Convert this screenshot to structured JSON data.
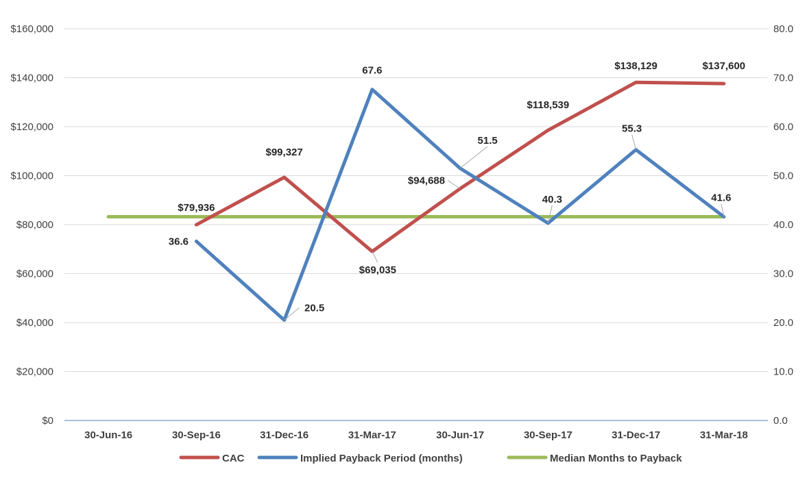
{
  "chart_data": {
    "type": "line",
    "categories": [
      "30-Jun-16",
      "30-Sep-16",
      "31-Dec-16",
      "31-Mar-17",
      "30-Jun-17",
      "30-Sep-17",
      "31-Dec-17",
      "31-Mar-18"
    ],
    "y_left": {
      "ticks": [
        "$0",
        "$20,000",
        "$40,000",
        "$60,000",
        "$80,000",
        "$100,000",
        "$120,000",
        "$140,000",
        "$160,000"
      ],
      "range": [
        0,
        160000
      ]
    },
    "y_right": {
      "ticks": [
        "0.0",
        "10.0",
        "20.0",
        "30.0",
        "40.0",
        "50.0",
        "60.0",
        "70.0",
        "80.0"
      ],
      "range": [
        0,
        80
      ]
    },
    "grid": true,
    "legend_position": "bottom",
    "series": [
      {
        "name": "CAC",
        "axis": "left",
        "color": "#c0504d",
        "values": [
          null,
          79936,
          99327,
          69035,
          94688,
          118539,
          138129,
          137600
        ],
        "labels": [
          "",
          "$79,936",
          "$99,327",
          "$69,035",
          "$94,688",
          "$118,539",
          "$138,129",
          "$137,600"
        ]
      },
      {
        "name": "Implied Payback Period (months)",
        "axis": "right",
        "color": "#4f81bd",
        "values": [
          null,
          36.6,
          20.5,
          67.6,
          51.5,
          40.3,
          55.3,
          41.6
        ],
        "labels": [
          "",
          "36.6",
          "20.5",
          "67.6",
          "51.5",
          "40.3",
          "55.3",
          "41.6"
        ]
      },
      {
        "name": "Median Months to Payback",
        "axis": "right",
        "color": "#9bbb59",
        "values": [
          41.6,
          41.6,
          41.6,
          41.6,
          41.6,
          41.6,
          41.6,
          41.6
        ],
        "labels": [
          "",
          "",
          "",
          "",
          "",
          "",
          "",
          ""
        ]
      }
    ]
  }
}
